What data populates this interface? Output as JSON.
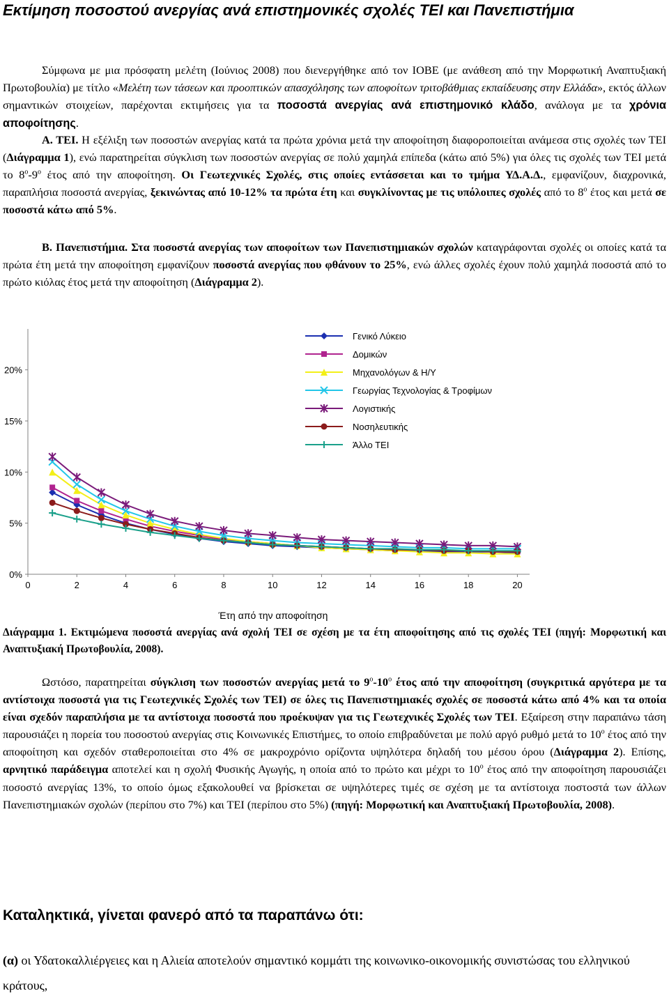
{
  "title": "Εκτίμηση ποσοστού ανεργίας ανά επιστημονικές σχολές ΤΕΙ και Πανεπιστήμια",
  "intro": {
    "t1": "Σύμφωνα με μια πρόσφατη μελέτη (Ιούνιος 2008) που διενεργήθηκε από τον ΙΟΒΕ (με ανάθεση από την Μορφωτική Αναπτυξιακή Πρωτοβουλία) με τίτλο «",
    "t2": "Μελέτη των τάσεων και προοπτικών απασχόλησης των αποφοίτων τριτοβάθμιας εκπαίδευσης στην Ελλάδα",
    "t3": "», εκτός άλλων σημαντικών στοιχείων, παρέχονται εκτιμήσεις για τα ",
    "t4": "ποσοστά ανεργίας ανά επιστημονικό κλάδο",
    "t5": ", ανάλογα με τα ",
    "t6": "χρόνια αποφοίτησης",
    "t7": "."
  },
  "tei": {
    "label": "Α. ΤΕΙ.",
    "t1": " Η εξέλιξη των ποσοστών ανεργίας κατά τα πρώτα χρόνια μετά την αποφοίτηση διαφοροποιείται ανάμεσα στις σχολές των ΤΕΙ (",
    "t2": "Διάγραμμα 1",
    "t3": "), ενώ παρατηρείται σύγκλιση των ποσοστών ανεργίας σε πολύ χαμηλά επίπεδα (κάτω από 5%) για όλες τις σχολές των ΤΕΙ μετά το 8",
    "sup1": "ο",
    "t4": "-9",
    "sup2": "ο",
    "t5": " έτος από την αποφοίτηση. ",
    "t6": "Οι Γεωτεχνικές Σχολές, στις οποίες εντάσσεται και το τμήμα ΥΔ.Α.Δ.",
    "t7": ", εμφανίζουν, διαχρονικά, παραπλήσια ποσοστά ανεργίας, ",
    "t8": "ξεκινώντας από 10-12% τα πρώτα έτη",
    "t9": " και ",
    "t10": "συγκλίνοντας με τις υπόλοιπες σχολές",
    "t11": " από το 8",
    "sup3": "ο",
    "t12": " έτος και μετά ",
    "t13": "σε ποσοστά κάτω από 5%",
    "t14": "."
  },
  "uni": {
    "label": "Β. Πανεπιστήμια.",
    "t1": " Στα ποσοστά ανεργίας των αποφοίτων των Πανεπιστημιακών σχολών",
    "t2": " καταγράφονται σχολές οι οποίες κατά τα πρώτα έτη μετά την αποφοίτηση εμφανίζουν ",
    "t3": "ποσοστά ανεργίας που φθάνουν το 25%",
    "t4": ", ενώ άλλες σχολές έχουν πολύ χαμηλά ποσοστά από το πρώτο κιόλας έτος μετά την αποφοίτηση (",
    "t5": "Διάγραμμα 2",
    "t6": ")."
  },
  "chart_data": {
    "type": "line",
    "xlabel": "Έτη από την αποφοίτηση",
    "ylabel": "",
    "x": [
      1,
      2,
      3,
      4,
      5,
      6,
      7,
      8,
      9,
      10,
      11,
      12,
      13,
      14,
      15,
      16,
      17,
      18,
      19,
      20
    ],
    "xticks": [
      0,
      2,
      4,
      6,
      8,
      10,
      12,
      14,
      16,
      18,
      20
    ],
    "yticks": [
      "0%",
      "5%",
      "10%",
      "15%",
      "20%"
    ],
    "ylim": [
      0,
      0.24
    ],
    "xlim": [
      0,
      20.5
    ],
    "legend_position": "top-right",
    "series": [
      {
        "name": "Γενικό Λύκειο",
        "color": "#1b2fb0",
        "marker": "diamond",
        "values": [
          0.08,
          0.068,
          0.058,
          0.05,
          0.044,
          0.039,
          0.035,
          0.032,
          0.03,
          0.028,
          0.027,
          0.026,
          0.025,
          0.024,
          0.023,
          0.023,
          0.022,
          0.022,
          0.022,
          0.021
        ]
      },
      {
        "name": "Δομικών",
        "color": "#b0238f",
        "marker": "square",
        "values": [
          0.085,
          0.072,
          0.062,
          0.054,
          0.047,
          0.042,
          0.038,
          0.034,
          0.032,
          0.03,
          0.028,
          0.027,
          0.026,
          0.025,
          0.024,
          0.024,
          0.023,
          0.023,
          0.022,
          0.022
        ]
      },
      {
        "name": "Μηχανολόγων & Η/Υ",
        "color": "#f3ef18",
        "marker": "triangle",
        "values": [
          0.1,
          0.082,
          0.068,
          0.058,
          0.05,
          0.044,
          0.039,
          0.035,
          0.032,
          0.03,
          0.028,
          0.026,
          0.025,
          0.024,
          0.023,
          0.022,
          0.021,
          0.021,
          0.02,
          0.02
        ]
      },
      {
        "name": "Γεωργίας Τεχνολογίας & Τροφίμων",
        "color": "#22c6e8",
        "marker": "x",
        "values": [
          0.11,
          0.088,
          0.073,
          0.062,
          0.054,
          0.047,
          0.042,
          0.038,
          0.035,
          0.033,
          0.031,
          0.03,
          0.029,
          0.028,
          0.027,
          0.026,
          0.026,
          0.025,
          0.025,
          0.025
        ]
      },
      {
        "name": "Λογιστικής",
        "color": "#7a1a7a",
        "marker": "star",
        "values": [
          0.115,
          0.095,
          0.08,
          0.068,
          0.059,
          0.052,
          0.047,
          0.043,
          0.04,
          0.038,
          0.036,
          0.034,
          0.033,
          0.032,
          0.031,
          0.03,
          0.029,
          0.028,
          0.028,
          0.027
        ]
      },
      {
        "name": "Νοσηλευτικής",
        "color": "#8b1b1b",
        "marker": "circle",
        "values": [
          0.07,
          0.062,
          0.055,
          0.049,
          0.044,
          0.04,
          0.036,
          0.033,
          0.031,
          0.029,
          0.028,
          0.027,
          0.026,
          0.025,
          0.024,
          0.024,
          0.023,
          0.023,
          0.022,
          0.022
        ]
      },
      {
        "name": "Άλλο ΤΕΙ",
        "color": "#1aa08a",
        "marker": "plus",
        "values": [
          0.06,
          0.054,
          0.049,
          0.045,
          0.041,
          0.038,
          0.035,
          0.033,
          0.031,
          0.029,
          0.028,
          0.027,
          0.026,
          0.025,
          0.025,
          0.024,
          0.024,
          0.023,
          0.023,
          0.023
        ]
      }
    ]
  },
  "caption": "Διάγραμμα 1. Εκτιμώμενα ποσοστά ανεργίας ανά σχολή ΤΕΙ σε σχέση με τα έτη αποφοίτησης από τις σχολές ΤΕΙ (πηγή: Μορφωτική και Αναπτυξιακή Πρωτοβουλία, 2008).",
  "para3": {
    "t1": "Ωστόσο, παρατηρείται ",
    "t2": "σύγκλιση των ποσοστών ανεργίας μετά το 9",
    "sup1": "ο",
    "t3": "-10",
    "sup2": "ο",
    "t4": " έτος από την αποφοίτηση (συγκριτικά αργότερα με τα αντίστοιχα ποσοστά για τις Γεωτεχνικές Σχολές των ΤΕΙ) σε όλες τις Πανεπιστημιακές σχολές σε ποσοστά κάτω από 4% και τα οποία είναι σχεδόν παραπλήσια με τα αντίστοιχα ποσοστά που προέκυψαν για τις Γεωτεχνικές Σχολές των ΤΕΙ",
    "t5": ". Εξαίρεση στην παραπάνω τάση παρουσιάζει η πορεία του ποσοστού ανεργίας στις Κοινωνικές Επιστήμες, το οποίο επιβραδύνεται με πολύ αργό ρυθμό μετά το 10",
    "sup3": "ο",
    "t6": " έτος από την αποφοίτηση και σχεδόν σταθεροποιείται στο 4% σε μακροχρόνιο ορίζοντα υψηλότερα δηλαδή του μέσου όρου (",
    "t7": "Διάγραμμα 2",
    "t8": "). Επίσης, ",
    "t9": "αρνητικό παράδειγμα",
    "t10": " αποτελεί και η σχολή Φυσικής Αγωγής, η οποία από το πρώτο και μέχρι το 10",
    "sup4": "ο",
    "t11": " έτος από την αποφοίτηση παρουσιάζει ποσοστό ανεργίας 13%, το οποίο όμως εξακολουθεί να βρίσκεται σε υψηλότερες τιμές σε σχέση με τα αντίστοιχα ποστοστά των άλλων Πανεπιστημιακών σχολών (περίπου στο 7%) και ΤΕΙ (περίπου στο 5%) ",
    "t12": "(πηγή: Μορφωτική και Αναπτυξιακή Πρωτοβουλία, 2008)",
    "t13": "."
  },
  "conclusion_heading": "Καταληκτικά, γίνεται φανερό από τα παραπάνω ότι:",
  "item_a": {
    "label": "(α)",
    "text": " οι Υδατοκαλλιέργειες και η Αλιεία αποτελούν σημαντικό κομμάτι της κοινωνικο-οικονομικής συνιστώσας του ελληνικού κράτους,"
  }
}
